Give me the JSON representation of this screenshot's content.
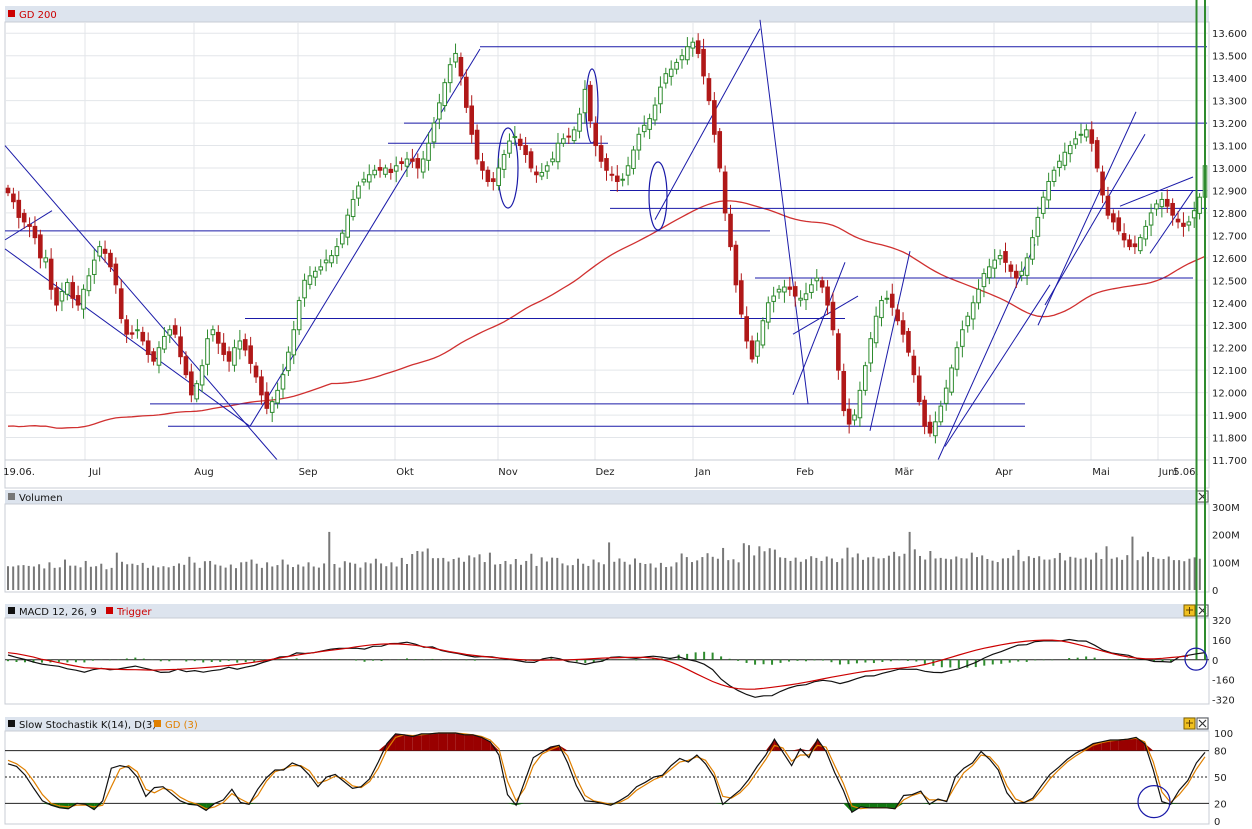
{
  "chart_data": [
    {
      "type": "candlestick",
      "name": "GD 200",
      "legend": "GD 200",
      "legend_color": "#cc0000",
      "x_labels": [
        "19.06.",
        "Jul",
        "Aug",
        "Sep",
        "Okt",
        "Nov",
        "Dez",
        "Jan",
        "Feb",
        "Mär",
        "Apr",
        "Mai",
        "Juni",
        "5.06."
      ],
      "y_ticks": [
        "13.600",
        "13.500",
        "13.400",
        "13.300",
        "13.200",
        "13.100",
        "13.000",
        "12.900",
        "12.800",
        "12.700",
        "12.600",
        "12.500",
        "12.400",
        "12.300",
        "12.200",
        "12.100",
        "12.000",
        "11.900",
        "11.800",
        "11.700"
      ],
      "ylim": [
        11700,
        13650
      ],
      "grid": true,
      "up_color": "#2e8b2e",
      "down_color": "#b01818",
      "ma_color": "#d03030",
      "trendline_color": "#1a1aa8",
      "closes": [
        12890,
        12850,
        12780,
        12760,
        12740,
        12690,
        12600,
        12600,
        12460,
        12390,
        12450,
        12490,
        12420,
        12390,
        12460,
        12520,
        12590,
        12650,
        12620,
        12560,
        12480,
        12330,
        12260,
        12260,
        12280,
        12230,
        12170,
        12140,
        12200,
        12250,
        12280,
        12260,
        12160,
        12080,
        11990,
        12040,
        12120,
        12240,
        12280,
        12220,
        12170,
        12140,
        12200,
        12230,
        12190,
        12130,
        12070,
        11990,
        11930,
        11960,
        12010,
        12080,
        12180,
        12280,
        12410,
        12500,
        12520,
        12540,
        12560,
        12590,
        12610,
        12650,
        12710,
        12790,
        12860,
        12920,
        12950,
        12970,
        12990,
        12990,
        13000,
        12980,
        13010,
        13020,
        13040,
        13030,
        13000,
        13040,
        13110,
        13200,
        13290,
        13380,
        13460,
        13510,
        13410,
        13270,
        13150,
        13040,
        12990,
        12940,
        12940,
        13000,
        13060,
        13120,
        13140,
        13100,
        13060,
        13000,
        12970,
        12980,
        13010,
        13040,
        13110,
        13130,
        13140,
        13170,
        13240,
        13350,
        13210,
        13100,
        13030,
        12990,
        12970,
        12940,
        12950,
        13010,
        13080,
        13150,
        13190,
        13220,
        13280,
        13360,
        13420,
        13440,
        13470,
        13500,
        13540,
        13560,
        13510,
        13410,
        13300,
        13150,
        13000,
        12800,
        12650,
        12480,
        12350,
        12230,
        12150,
        12230,
        12320,
        12400,
        12430,
        12460,
        12470,
        12460,
        12430,
        12420,
        12440,
        12480,
        12510,
        12470,
        12390,
        12280,
        12100,
        11920,
        11860,
        11900,
        12010,
        12120,
        12240,
        12340,
        12410,
        12420,
        12380,
        12320,
        12260,
        12180,
        12080,
        11960,
        11850,
        11820,
        11870,
        11940,
        12020,
        12110,
        12200,
        12280,
        12340,
        12400,
        12460,
        12530,
        12560,
        12590,
        12610,
        12580,
        12540,
        12510,
        12540,
        12600,
        12690,
        12780,
        12870,
        12940,
        12990,
        13030,
        13070,
        13100,
        13130,
        13150,
        13170,
        13110,
        13000,
        12880,
        12790,
        12760,
        12720,
        12680,
        12650,
        12650,
        12690,
        12740,
        12800,
        12840,
        12860,
        12830,
        12790,
        12760,
        12740,
        12760,
        12810,
        12870,
        13010
      ]
    },
    {
      "type": "bar",
      "name": "Volumen",
      "legend": "Volumen",
      "legend_color": "#777777",
      "y_ticks": [
        "300M",
        "200M",
        "100M",
        "0"
      ],
      "ylim": [
        0,
        300
      ],
      "bar_color": "#777777",
      "values": [
        86,
        85,
        89,
        90,
        87,
        85,
        93,
        78,
        100,
        80,
        82,
        110,
        88,
        88,
        82,
        105,
        84,
        86,
        95,
        75,
        80,
        135,
        102,
        93,
        95,
        90,
        98,
        80,
        88,
        82,
        86,
        82,
        87,
        96,
        91,
        120,
        99,
        80,
        104,
        105,
        92,
        88,
        81,
        92,
        79,
        100,
        102,
        110,
        95,
        80,
        100,
        85,
        90,
        110,
        92,
        83,
        92,
        85,
        100,
        85,
        81,
        96,
        210,
        94,
        81,
        104,
        99,
        95,
        81,
        100,
        96,
        113,
        96,
        86,
        100,
        85,
        116,
        94,
        130,
        141,
        139,
        150,
        115,
        115,
        116,
        103,
        112,
        117,
        102,
        125,
        118,
        129,
        101,
        135,
        92,
        94,
        105,
        93,
        112,
        91,
        105,
        131,
        87,
        118,
        103,
        117,
        116,
        96,
        89,
        90,
        113,
        95,
        87,
        110,
        100,
        93,
        172,
        102,
        114,
        102,
        92,
        114,
        98,
        94,
        96,
        81,
        98,
        83,
        85,
        100,
        132,
        119,
        101,
        107,
        119,
        133,
        120,
        113,
        152,
        108,
        111,
        100,
        169,
        162,
        125,
        158,
        140,
        151,
        146,
        118,
        116,
        105,
        117,
        102,
        111,
        122,
        116,
        105,
        121,
        114,
        101,
        114,
        153,
        118,
        132,
        109,
        118,
        120,
        114,
        115,
        124,
        138,
        122,
        131,
        210,
        147,
        123,
        110,
        141,
        114,
        116,
        113,
        111,
        121,
        115,
        114,
        135,
        119,
        125,
        112,
        106,
        101,
        114,
        115,
        124,
        145,
        104,
        122,
        116,
        122,
        110,
        110,
        115,
        134,
        107,
        120,
        117,
        113,
        117,
        110,
        135,
        112,
        158,
        113,
        118,
        109,
        126,
        193,
        108,
        121,
        138,
        119,
        113,
        112,
        121,
        108,
        108,
        104,
        113,
        118,
        113,
        265
      ]
    },
    {
      "type": "line",
      "name": "MACD",
      "legend": "MACD 12, 26, 9",
      "legend2": "Trigger",
      "legend2_color": "#cc0000",
      "y_ticks": [
        "320",
        "160",
        "0",
        "-160",
        "-320"
      ],
      "ylim": [
        -340,
        320
      ],
      "series": [
        {
          "name": "MACD 12, 26, 9",
          "color": "#111111",
          "values": [
            38,
            19,
            2,
            -19,
            -35,
            -45,
            -53,
            -73,
            -84,
            -100,
            -80,
            -69,
            -81,
            -74,
            -62,
            -51,
            -67,
            -82,
            -102,
            -99,
            -76,
            -96,
            -87,
            -100,
            -88,
            -80,
            -61,
            -76,
            -60,
            -46,
            -22,
            -2,
            22,
            26,
            55,
            50,
            57,
            71,
            85,
            92,
            92,
            93,
            86,
            108,
            109,
            130,
            132,
            141,
            125,
            100,
            104,
            75,
            62,
            50,
            35,
            22,
            26,
            23,
            12,
            4,
            -7,
            -19,
            -21,
            8,
            19,
            8,
            -15,
            -24,
            -38,
            -21,
            -12,
            20,
            24,
            17,
            11,
            22,
            29,
            21,
            10,
            24,
            3,
            -11,
            -36,
            -79,
            -156,
            -208,
            -248,
            -280,
            -302,
            -290,
            -289,
            -255,
            -227,
            -208,
            -201,
            -177,
            -165,
            -173,
            -192,
            -175,
            -152,
            -131,
            -130,
            -109,
            -93,
            -75,
            -77,
            -76,
            -93,
            -102,
            -103,
            -87,
            -73,
            -48,
            -21,
            14,
            44,
            66,
            93,
            118,
            121,
            146,
            152,
            152,
            151,
            163,
            152,
            150,
            117,
            78,
            54,
            45,
            36,
            10,
            3,
            -14,
            -15,
            -19,
            24,
            36,
            48,
            58
          ]
        },
        {
          "name": "Trigger",
          "color": "#cc0000",
          "values": [
            57,
            49,
            36,
            21,
            3,
            -9,
            -24,
            -38,
            -51,
            -64,
            -67,
            -71,
            -74,
            -78,
            -79,
            -80,
            -82,
            -84,
            -82,
            -79,
            -77,
            -73,
            -69,
            -64,
            -58,
            -52,
            -46,
            -38,
            -29,
            -20,
            -10,
            2,
            14,
            26,
            37,
            48,
            57,
            67,
            76,
            84,
            93,
            104,
            113,
            121,
            126,
            128,
            127,
            123,
            116,
            105,
            93,
            80,
            66,
            54,
            42,
            34,
            26,
            19,
            13,
            7,
            2,
            -2,
            -4,
            -3,
            -2,
            -2,
            -1,
            2,
            5,
            9,
            13,
            15,
            17,
            19,
            20,
            19,
            13,
            2,
            -17,
            -44,
            -76,
            -110,
            -143,
            -175,
            -201,
            -221,
            -233,
            -237,
            -236,
            -230,
            -222,
            -213,
            -203,
            -193,
            -181,
            -168,
            -154,
            -140,
            -128,
            -116,
            -104,
            -94,
            -86,
            -79,
            -73,
            -68,
            -61,
            -52,
            -38,
            -21,
            -3,
            17,
            38,
            58,
            77,
            93,
            107,
            120,
            132,
            142,
            150,
            155,
            158,
            158,
            152,
            140,
            124,
            106,
            88,
            69,
            51,
            35,
            22,
            13,
            8,
            8,
            12,
            18,
            24,
            30
          ]
        }
      ],
      "histogram_color": "#2e8b2e"
    },
    {
      "type": "line",
      "name": "Slow Stochastik",
      "legend": "Slow Stochastik K(14), D(3)",
      "legend2": "GD (3)",
      "legend2_color": "#e08000",
      "y_ticks": [
        "100",
        "80",
        "50",
        "20",
        "0"
      ],
      "ylim": [
        0,
        100
      ],
      "overbought": 80,
      "oversold": 20,
      "fill_over_color": "#990000",
      "fill_under_color": "#117711",
      "series": [
        {
          "name": "Slow Stochastik K(14), D(3)",
          "color": "#111111",
          "values": [
            65,
            62,
            52,
            37,
            23,
            18,
            15,
            14,
            20,
            19,
            13,
            23,
            60,
            63,
            61,
            50,
            28,
            38,
            39,
            31,
            23,
            19,
            18,
            12,
            20,
            24,
            36,
            21,
            19,
            36,
            49,
            58,
            58,
            66,
            62,
            52,
            39,
            50,
            53,
            45,
            37,
            39,
            48,
            67,
            88,
            99,
            98,
            96,
            99,
            99,
            100,
            100,
            100,
            98,
            98,
            95,
            90,
            75,
            30,
            18,
            45,
            72,
            78,
            84,
            86,
            66,
            40,
            23,
            22,
            20,
            18,
            23,
            29,
            39,
            44,
            50,
            52,
            63,
            71,
            67,
            75,
            65,
            50,
            19,
            27,
            35,
            47,
            62,
            75,
            93,
            78,
            63,
            82,
            72,
            93,
            79,
            55,
            35,
            10,
            16,
            15,
            15,
            15,
            14,
            29,
            30,
            34,
            19,
            25,
            22,
            50,
            60,
            66,
            79,
            70,
            58,
            32,
            20,
            21,
            26,
            40,
            53,
            61,
            70,
            77,
            82,
            88,
            90,
            92,
            92,
            93,
            95,
            88,
            58,
            22,
            19,
            35,
            46,
            66,
            78
          ]
        },
        {
          "name": "GD (3)",
          "color": "#e08000",
          "values": [
            69,
            65,
            58,
            45,
            30,
            20,
            17,
            16,
            18,
            18,
            16,
            18,
            39,
            59,
            63,
            56,
            36,
            32,
            37,
            35,
            27,
            22,
            19,
            14,
            16,
            21,
            31,
            25,
            20,
            29,
            45,
            56,
            59,
            63,
            63,
            57,
            43,
            46,
            51,
            48,
            40,
            38,
            45,
            60,
            81,
            95,
            98,
            97,
            98,
            99,
            100,
            100,
            100,
            99,
            98,
            96,
            92,
            82,
            45,
            23,
            37,
            63,
            76,
            81,
            85,
            74,
            49,
            29,
            23,
            21,
            19,
            21,
            26,
            35,
            41,
            47,
            51,
            59,
            67,
            69,
            73,
            69,
            55,
            28,
            26,
            32,
            42,
            56,
            70,
            86,
            83,
            68,
            75,
            75,
            86,
            84,
            63,
            43,
            17,
            14,
            15,
            15,
            15,
            14,
            24,
            29,
            32,
            24,
            24,
            23,
            40,
            55,
            63,
            75,
            73,
            62,
            40,
            25,
            21,
            24,
            35,
            48,
            58,
            67,
            74,
            80,
            86,
            89,
            91,
            92,
            93,
            94,
            90,
            67,
            33,
            21,
            30,
            42,
            59,
            73
          ]
        }
      ]
    }
  ]
}
